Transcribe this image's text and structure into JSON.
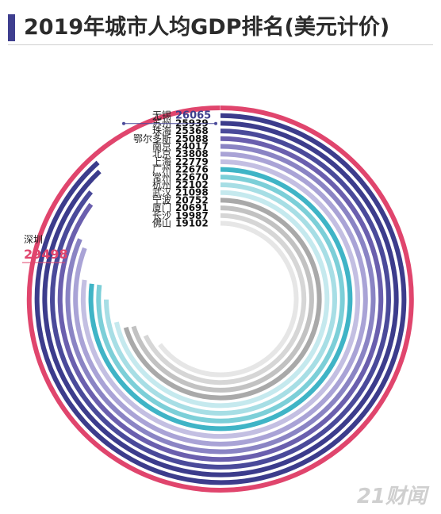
{
  "title": "2019年城市人均GDP排名(美元计价)",
  "watermark": "21财闻",
  "chart_data": {
    "type": "radial-bar",
    "title": "2019年城市人均GDP排名(美元计价)",
    "categories": [
      "深圳",
      "无锡",
      "苏州",
      "珠海",
      "鄂尔多斯",
      "南京",
      "北京",
      "上海",
      "广州",
      "常州",
      "杭州",
      "武汉",
      "宁波",
      "厦门",
      "长沙",
      "佛山"
    ],
    "values": [
      29498,
      26065,
      25939,
      25368,
      25088,
      24017,
      23808,
      22779,
      22676,
      22670,
      22102,
      21098,
      20752,
      20691,
      19987,
      19102
    ],
    "colors": [
      "#e0456d",
      "#3c3c8c",
      "#3c3c8c",
      "#4a4a9a",
      "#6a5fae",
      "#8a84c4",
      "#a9a3d6",
      "#c3bfe2",
      "#3fb4c6",
      "#7ccfd8",
      "#a7dee5",
      "#c5e9ee",
      "#a9a9a9",
      "#c2c2c2",
      "#d6d6d6",
      "#e6e6e6"
    ],
    "ylim": [
      0,
      29498
    ]
  }
}
